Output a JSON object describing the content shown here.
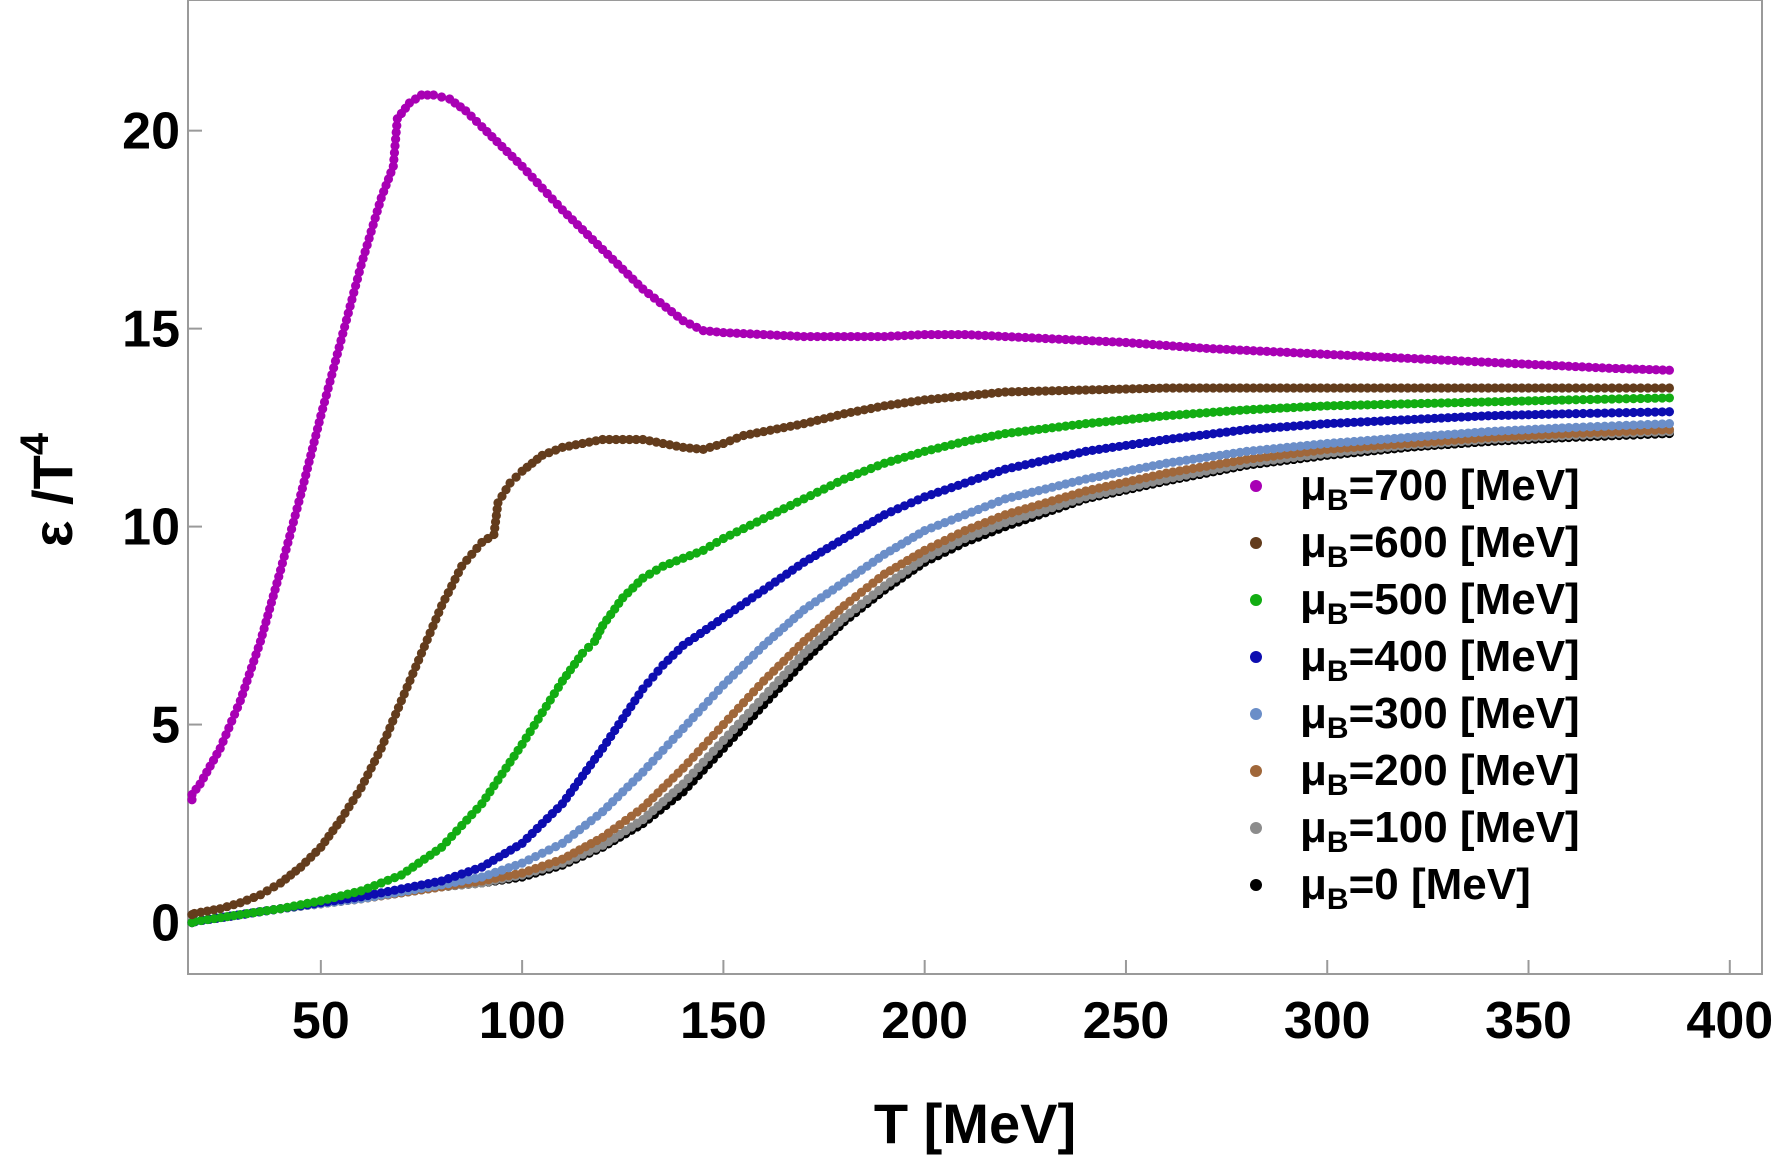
{
  "chart_data": {
    "type": "scatter",
    "xlabel": "T [MeV]",
    "ylabel_main": "ε /T",
    "ylabel_sup": "4",
    "xlim": [
      17,
      408
    ],
    "ylim": [
      -1.3,
      23.3
    ],
    "xticks": [
      50,
      100,
      150,
      200,
      250,
      300,
      350,
      400
    ],
    "yticks": [
      0,
      5,
      10,
      15,
      20
    ],
    "grid": false,
    "legend_position": "right",
    "series": [
      {
        "label_prefix": "μ",
        "label_sub": "B",
        "label_rest": "=700 [MeV]",
        "color": "#a800b4",
        "x": [
          17,
          20,
          25,
          30,
          35,
          40,
          45,
          50,
          55,
          60,
          65,
          68,
          69,
          72,
          75,
          78,
          82,
          86,
          90,
          95,
          100,
          110,
          120,
          130,
          140,
          145,
          150,
          160,
          170,
          180,
          190,
          200,
          210,
          220,
          230,
          250,
          270,
          290,
          310,
          330,
          350,
          370,
          385
        ],
        "y": [
          3.1,
          3.5,
          4.4,
          5.6,
          7.1,
          8.9,
          10.8,
          12.8,
          14.7,
          16.6,
          18.3,
          19.1,
          20.3,
          20.7,
          20.9,
          20.9,
          20.8,
          20.5,
          20.1,
          19.6,
          19.1,
          18.0,
          17.0,
          16.0,
          15.2,
          14.95,
          14.9,
          14.85,
          14.8,
          14.8,
          14.8,
          14.85,
          14.85,
          14.8,
          14.75,
          14.65,
          14.5,
          14.4,
          14.3,
          14.2,
          14.1,
          14.0,
          13.95
        ]
      },
      {
        "label_prefix": "μ",
        "label_sub": "B",
        "label_rest": "=600 [MeV]",
        "color": "#633c1c",
        "x": [
          17,
          25,
          30,
          35,
          40,
          45,
          50,
          55,
          60,
          65,
          70,
          75,
          80,
          85,
          90,
          93,
          94,
          97,
          100,
          105,
          110,
          115,
          120,
          125,
          130,
          135,
          140,
          145,
          150,
          155,
          160,
          170,
          180,
          190,
          200,
          210,
          220,
          240,
          260,
          280,
          300,
          320,
          340,
          360,
          385
        ],
        "y": [
          0.2,
          0.35,
          0.5,
          0.7,
          1.0,
          1.4,
          1.9,
          2.6,
          3.4,
          4.4,
          5.6,
          6.8,
          8.0,
          9.0,
          9.6,
          9.8,
          10.6,
          11.1,
          11.4,
          11.8,
          12.0,
          12.1,
          12.2,
          12.2,
          12.2,
          12.1,
          12.0,
          11.95,
          12.1,
          12.3,
          12.4,
          12.6,
          12.85,
          13.05,
          13.2,
          13.3,
          13.4,
          13.45,
          13.5,
          13.5,
          13.5,
          13.5,
          13.5,
          13.5,
          13.5
        ]
      },
      {
        "label_prefix": "μ",
        "label_sub": "B",
        "label_rest": "=500 [MeV]",
        "color": "#12ad12",
        "x": [
          17,
          30,
          40,
          50,
          60,
          70,
          80,
          90,
          100,
          105,
          110,
          115,
          118,
          120,
          125,
          130,
          135,
          140,
          145,
          150,
          160,
          170,
          180,
          190,
          200,
          210,
          220,
          240,
          260,
          280,
          300,
          320,
          340,
          360,
          385
        ],
        "y": [
          0.0,
          0.2,
          0.35,
          0.55,
          0.8,
          1.2,
          1.9,
          3.0,
          4.5,
          5.3,
          6.1,
          6.8,
          7.1,
          7.5,
          8.2,
          8.7,
          9.0,
          9.2,
          9.4,
          9.7,
          10.2,
          10.7,
          11.2,
          11.6,
          11.9,
          12.15,
          12.35,
          12.6,
          12.8,
          12.95,
          13.05,
          13.1,
          13.15,
          13.2,
          13.25
        ]
      },
      {
        "label_prefix": "μ",
        "label_sub": "B",
        "label_rest": "=400 [MeV]",
        "color": "#0d0db0",
        "x": [
          17,
          40,
          60,
          80,
          90,
          100,
          110,
          120,
          130,
          135,
          140,
          150,
          160,
          170,
          180,
          190,
          200,
          210,
          220,
          240,
          260,
          280,
          300,
          320,
          340,
          360,
          385
        ],
        "y": [
          0.0,
          0.35,
          0.65,
          1.05,
          1.4,
          2.0,
          3.0,
          4.4,
          5.9,
          6.5,
          7.0,
          7.7,
          8.4,
          9.1,
          9.7,
          10.3,
          10.75,
          11.1,
          11.45,
          11.9,
          12.2,
          12.45,
          12.6,
          12.7,
          12.8,
          12.85,
          12.9
        ]
      },
      {
        "label_prefix": "μ",
        "label_sub": "B",
        "label_rest": "=300 [MeV]",
        "color": "#6b8ec8",
        "x": [
          17,
          40,
          60,
          80,
          90,
          100,
          110,
          120,
          130,
          140,
          150,
          160,
          170,
          180,
          190,
          200,
          210,
          220,
          240,
          260,
          280,
          300,
          320,
          340,
          360,
          385
        ],
        "y": [
          0.0,
          0.35,
          0.6,
          0.95,
          1.15,
          1.5,
          2.0,
          2.8,
          3.8,
          4.9,
          6.0,
          7.0,
          7.9,
          8.6,
          9.3,
          9.9,
          10.3,
          10.7,
          11.2,
          11.6,
          11.9,
          12.1,
          12.25,
          12.4,
          12.5,
          12.6
        ]
      },
      {
        "label_prefix": "μ",
        "label_sub": "B",
        "label_rest": "=200 [MeV]",
        "color": "#a0673a",
        "x": [
          17,
          40,
          60,
          80,
          90,
          100,
          110,
          120,
          130,
          140,
          150,
          160,
          170,
          180,
          190,
          200,
          210,
          220,
          240,
          260,
          280,
          300,
          320,
          340,
          360,
          385
        ],
        "y": [
          0.0,
          0.35,
          0.6,
          0.9,
          1.05,
          1.25,
          1.6,
          2.15,
          2.9,
          3.9,
          5.0,
          6.1,
          7.1,
          8.0,
          8.8,
          9.4,
          9.9,
          10.3,
          10.9,
          11.35,
          11.7,
          11.95,
          12.1,
          12.25,
          12.35,
          12.45
        ]
      },
      {
        "label_prefix": "μ",
        "label_sub": "B",
        "label_rest": "=100 [MeV]",
        "color": "#8c8c8c",
        "x": [
          17,
          40,
          60,
          80,
          90,
          100,
          110,
          120,
          130,
          140,
          150,
          160,
          170,
          180,
          190,
          200,
          210,
          220,
          240,
          260,
          280,
          300,
          320,
          340,
          360,
          385
        ],
        "y": [
          0.0,
          0.35,
          0.6,
          0.9,
          1.0,
          1.2,
          1.5,
          1.95,
          2.6,
          3.5,
          4.6,
          5.7,
          6.8,
          7.7,
          8.5,
          9.2,
          9.7,
          10.1,
          10.75,
          11.2,
          11.6,
          11.85,
          12.05,
          12.2,
          12.3,
          12.4
        ]
      },
      {
        "label_prefix": "μ",
        "label_sub": "B",
        "label_rest": "=0 [MeV]",
        "color": "#000000",
        "x": [
          17,
          40,
          60,
          80,
          90,
          100,
          110,
          120,
          130,
          140,
          150,
          160,
          170,
          180,
          190,
          200,
          210,
          220,
          240,
          260,
          280,
          300,
          320,
          340,
          360,
          385
        ],
        "y": [
          0.0,
          0.35,
          0.6,
          0.9,
          1.0,
          1.15,
          1.45,
          1.9,
          2.5,
          3.3,
          4.4,
          5.5,
          6.6,
          7.6,
          8.4,
          9.1,
          9.6,
          10.0,
          10.7,
          11.15,
          11.55,
          11.8,
          12.0,
          12.15,
          12.25,
          12.35
        ]
      }
    ]
  }
}
